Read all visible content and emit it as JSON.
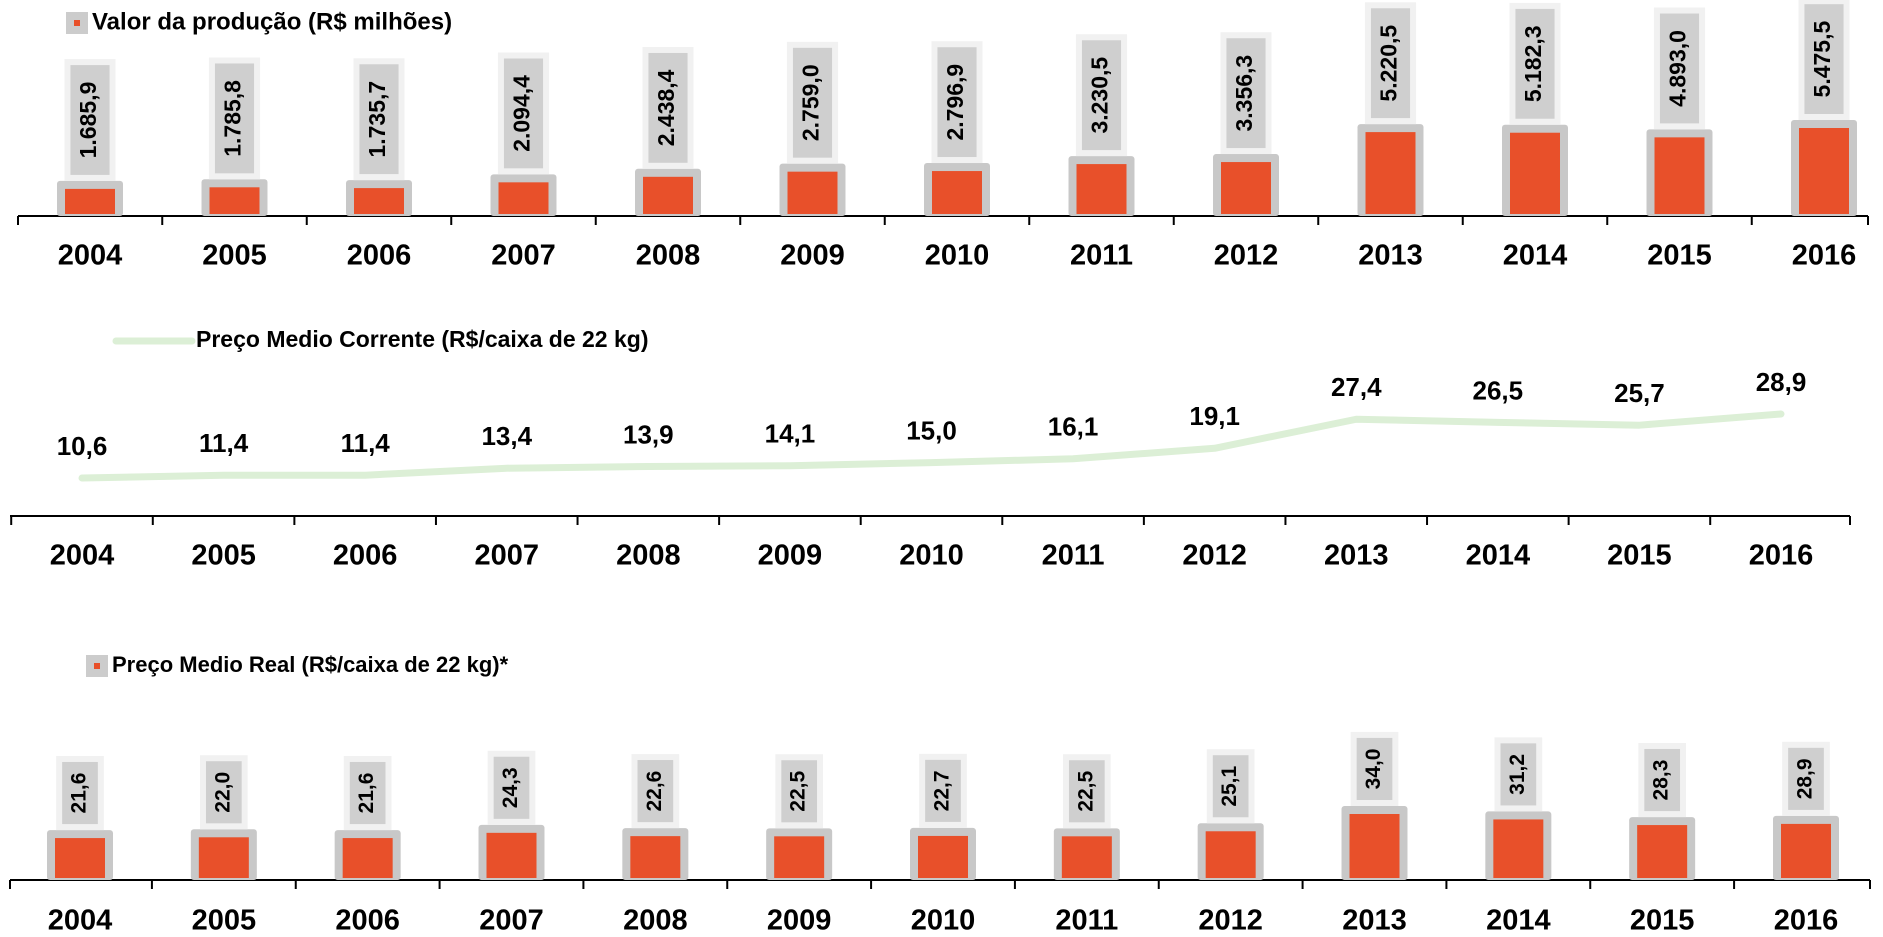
{
  "chart_data": [
    {
      "type": "bar",
      "categories": [
        "2004",
        "2005",
        "2006",
        "2007",
        "2008",
        "2009",
        "2010",
        "2011",
        "2012",
        "2013",
        "2014",
        "2015",
        "2016"
      ],
      "series": [
        {
          "name": "Valor da produção (R$ milhões)",
          "color": "#e8502a",
          "values": [
            1685.9,
            1785.8,
            1735.7,
            2094.4,
            2438.4,
            2759.0,
            2796.9,
            3230.5,
            3356.3,
            5220.5,
            5182.3,
            4893.0,
            5475.5
          ],
          "value_labels": [
            "1.685,9",
            "1.785,8",
            "1.735,7",
            "2.094,4",
            "2.438,4",
            "2.759,0",
            "2.796,9",
            "3.230,5",
            "3.356,3",
            "5.220,5",
            "5.182,3",
            "4.893,0",
            "5.475,5"
          ]
        }
      ]
    },
    {
      "type": "line",
      "categories": [
        "2004",
        "2005",
        "2006",
        "2007",
        "2008",
        "2009",
        "2010",
        "2011",
        "2012",
        "2013",
        "2014",
        "2015",
        "2016"
      ],
      "series": [
        {
          "name": "Preço Medio Corrente (R$/caixa de 22 kg)",
          "color": "#dcefd6",
          "values": [
            10.6,
            11.4,
            11.4,
            13.4,
            13.9,
            14.1,
            15.0,
            16.1,
            19.1,
            27.4,
            26.5,
            25.7,
            28.9
          ],
          "value_labels": [
            "10,6",
            "11,4",
            "11,4",
            "13,4",
            "13,9",
            "14,1",
            "15,0",
            "16,1",
            "19,1",
            "27,4",
            "26,5",
            "25,7",
            "28,9"
          ]
        }
      ]
    },
    {
      "type": "bar",
      "categories": [
        "2004",
        "2005",
        "2006",
        "2007",
        "2008",
        "2009",
        "2010",
        "2011",
        "2012",
        "2013",
        "2014",
        "2015",
        "2016"
      ],
      "series": [
        {
          "name": "Preço Medio Real (R$/caixa de 22 kg)*",
          "color": "#e8502a",
          "values": [
            21.6,
            22.0,
            21.6,
            24.3,
            22.6,
            22.5,
            22.7,
            22.5,
            25.1,
            34.0,
            31.2,
            28.3,
            28.9
          ],
          "value_labels": [
            "21,6",
            "22,0",
            "21,6",
            "24,3",
            "22,6",
            "22,5",
            "22,7",
            "22,5",
            "25,1",
            "34,0",
            "31,2",
            "28,3",
            "28,9"
          ]
        }
      ]
    }
  ]
}
